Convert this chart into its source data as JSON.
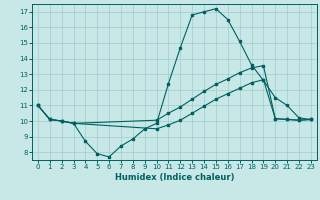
{
  "title": "",
  "xlabel": "Humidex (Indice chaleur)",
  "bg_color": "#c8e8e8",
  "line_color": "#006060",
  "grid_major_color": "#a0cccc",
  "grid_minor_color": "#b8dcdc",
  "xlim": [
    -0.5,
    23.5
  ],
  "ylim": [
    7.5,
    17.5
  ],
  "xticks": [
    0,
    1,
    2,
    3,
    4,
    5,
    6,
    7,
    8,
    9,
    10,
    11,
    12,
    13,
    14,
    15,
    16,
    17,
    18,
    19,
    20,
    21,
    22,
    23
  ],
  "yticks": [
    8,
    9,
    10,
    11,
    12,
    13,
    14,
    15,
    16,
    17
  ],
  "curves": [
    {
      "x": [
        0,
        1,
        2,
        3,
        4,
        5,
        6,
        7,
        8,
        9,
        10,
        11,
        12,
        13,
        14,
        15,
        16,
        17,
        18,
        19,
        20,
        21,
        22,
        23
      ],
      "y": [
        11.0,
        10.1,
        10.0,
        9.85,
        8.7,
        7.9,
        7.7,
        8.4,
        8.85,
        9.5,
        9.85,
        12.4,
        14.7,
        16.8,
        17.0,
        17.2,
        16.5,
        15.1,
        13.6,
        12.6,
        11.5,
        11.0,
        10.2,
        10.1
      ]
    },
    {
      "x": [
        0,
        1,
        2,
        3,
        10,
        11,
        12,
        13,
        14,
        15,
        16,
        17,
        18,
        19,
        20,
        21,
        22,
        23
      ],
      "y": [
        11.0,
        10.1,
        10.0,
        9.85,
        10.05,
        10.5,
        10.9,
        11.4,
        11.9,
        12.35,
        12.7,
        13.1,
        13.4,
        13.55,
        10.15,
        10.1,
        10.05,
        10.1
      ]
    },
    {
      "x": [
        0,
        1,
        2,
        3,
        10,
        11,
        12,
        13,
        14,
        15,
        16,
        17,
        18,
        19,
        20,
        21,
        22,
        23
      ],
      "y": [
        11.0,
        10.1,
        10.0,
        9.85,
        9.5,
        9.75,
        10.05,
        10.5,
        10.95,
        11.4,
        11.75,
        12.1,
        12.45,
        12.65,
        10.15,
        10.1,
        10.05,
        10.1
      ]
    }
  ]
}
